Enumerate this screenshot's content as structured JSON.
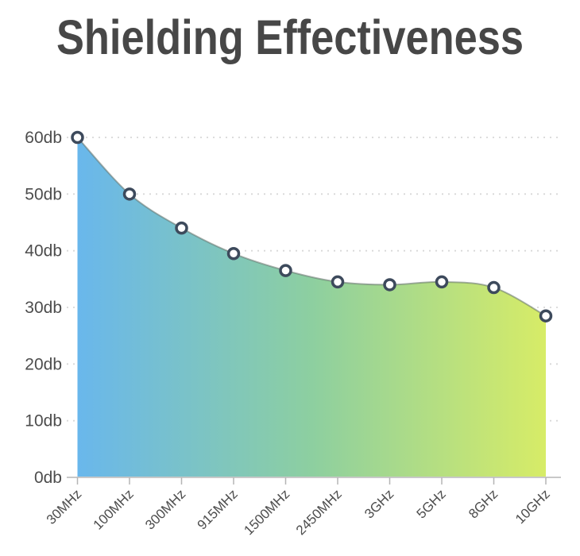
{
  "chart_data": {
    "type": "area",
    "title": "Shielding Effectiveness",
    "series_name": "Shielding Effectiveness",
    "categories": [
      "30MHz",
      "100MHz",
      "300MHz",
      "915MHz",
      "1500MHz",
      "2450MHz",
      "3GHz",
      "5GHz",
      "8GHz",
      "10GHz"
    ],
    "values": [
      60,
      50,
      44,
      39.5,
      36.5,
      34.5,
      34,
      34.5,
      33.5,
      28.5
    ],
    "xlabel": "",
    "ylabel": "",
    "y_ticks": [
      "0db",
      "10db",
      "20db",
      "30db",
      "40db",
      "50db",
      "60db"
    ],
    "y_tick_values": [
      0,
      10,
      20,
      30,
      40,
      50,
      60
    ],
    "ylim": [
      0,
      60
    ],
    "grid": "dotted-horizontal",
    "legend": "none",
    "marker": "open-circle",
    "colors": {
      "title": "#474747",
      "area_gradient_left": "#69b7ec",
      "area_gradient_mid": "#8dcfa0",
      "area_gradient_right": "#d7ec67",
      "line": "rgba(96,112,104,0.55)",
      "marker_stroke": "#3d4a5c",
      "marker_fill": "#ffffff",
      "grid_line": "#d8d8d8",
      "axis_line": "#c8c8c8",
      "tick_mark": "#b5b5b5",
      "tick_label": "#4d4d4d"
    }
  }
}
